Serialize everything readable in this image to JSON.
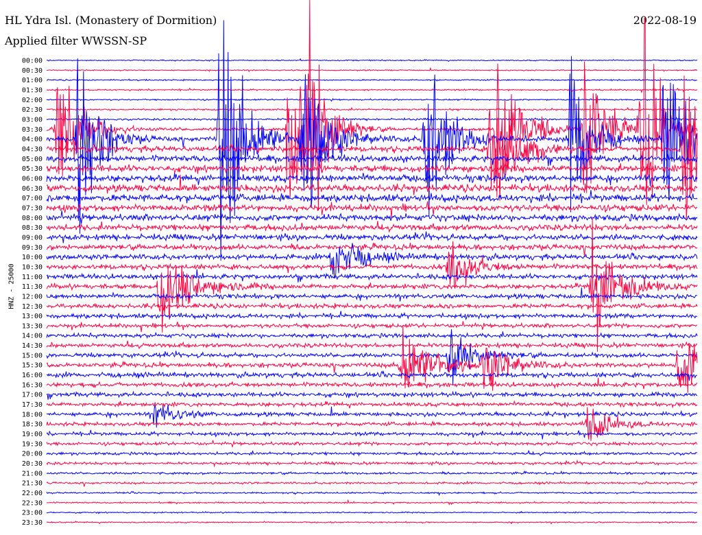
{
  "header": {
    "title": "HL Ydra Isl. (Monastery of Dormition)",
    "filter": "Applied filter WWSSN-SP",
    "date": "2022-08-19"
  },
  "chart_data": {
    "type": "line",
    "ylabel": "HNZ - 25000",
    "row_labels": [
      "00:00",
      "00:30",
      "01:00",
      "01:30",
      "02:00",
      "02:30",
      "03:00",
      "03:30",
      "04:00",
      "04:30",
      "05:00",
      "05:30",
      "06:00",
      "06:30",
      "07:00",
      "07:30",
      "08:00",
      "08:30",
      "09:00",
      "09:30",
      "10:00",
      "10:30",
      "11:00",
      "11:30",
      "12:00",
      "12:30",
      "13:00",
      "13:30",
      "14:00",
      "14:30",
      "15:00",
      "15:30",
      "16:00",
      "16:30",
      "17:00",
      "17:30",
      "18:00",
      "18:30",
      "19:00",
      "19:30",
      "20:00",
      "20:30",
      "21:00",
      "21:30",
      "22:00",
      "22:30",
      "23:00",
      "23:30"
    ],
    "colors": [
      "#0000ff",
      "#ff0040"
    ],
    "x_range_minutes": [
      0,
      30
    ],
    "noise_level": [
      0.6,
      0.6,
      0.7,
      0.8,
      0.8,
      0.9,
      1.0,
      1.6,
      2.6,
      3.0,
      3.4,
      3.6,
      3.8,
      3.9,
      3.9,
      3.6,
      3.4,
      3.2,
      3.0,
      2.9,
      2.8,
      2.7,
      2.6,
      2.6,
      2.5,
      2.5,
      2.4,
      2.2,
      2.2,
      2.3,
      2.3,
      2.4,
      2.5,
      2.4,
      2.3,
      2.2,
      2.2,
      2.0,
      1.9,
      1.7,
      1.5,
      1.4,
      1.2,
      1.1,
      0.9,
      0.8,
      0.7,
      0.7
    ],
    "events": [
      {
        "row": 7,
        "minute": 0.5,
        "amplitude": 90,
        "duration": 2
      },
      {
        "row": 8,
        "minute": 1.5,
        "amplitude": 160,
        "duration": 1.5
      },
      {
        "row": 8,
        "minute": 8.0,
        "amplitude": 190,
        "duration": 2
      },
      {
        "row": 7,
        "minute": 11.2,
        "amplitude": 130,
        "duration": 1.5
      },
      {
        "row": 8,
        "minute": 11.8,
        "amplitude": 110,
        "duration": 2
      },
      {
        "row": 7,
        "minute": 12.1,
        "amplitude": 150,
        "duration": 1.5
      },
      {
        "row": 8,
        "minute": 17.5,
        "amplitude": 120,
        "duration": 2
      },
      {
        "row": 7,
        "minute": 20.8,
        "amplitude": 110,
        "duration": 2
      },
      {
        "row": 9,
        "minute": 20.5,
        "amplitude": 100,
        "duration": 2
      },
      {
        "row": 8,
        "minute": 24.2,
        "amplitude": 130,
        "duration": 1.5
      },
      {
        "row": 7,
        "minute": 24.8,
        "amplitude": 140,
        "duration": 1.5
      },
      {
        "row": 7,
        "minute": 27.4,
        "amplitude": 160,
        "duration": 1.5
      },
      {
        "row": 8,
        "minute": 28.5,
        "amplitude": 110,
        "duration": 2
      },
      {
        "row": 9,
        "minute": 29.4,
        "amplitude": 90,
        "duration": 2
      },
      {
        "row": 20,
        "minute": 13.2,
        "amplitude": 40,
        "duration": 2
      },
      {
        "row": 21,
        "minute": 18.6,
        "amplitude": 35,
        "duration": 2
      },
      {
        "row": 23,
        "minute": 5.2,
        "amplitude": 60,
        "duration": 2.5
      },
      {
        "row": 23,
        "minute": 25.2,
        "amplitude": 90,
        "duration": 2
      },
      {
        "row": 31,
        "minute": 16.4,
        "amplitude": 55,
        "duration": 2.5
      },
      {
        "row": 30,
        "minute": 18.6,
        "amplitude": 40,
        "duration": 2
      },
      {
        "row": 31,
        "minute": 20.2,
        "amplitude": 35,
        "duration": 2
      },
      {
        "row": 31,
        "minute": 29.2,
        "amplitude": 50,
        "duration": 2
      },
      {
        "row": 37,
        "minute": 25.0,
        "amplitude": 25,
        "duration": 2
      },
      {
        "row": 36,
        "minute": 5.0,
        "amplitude": 15,
        "duration": 2
      }
    ]
  }
}
